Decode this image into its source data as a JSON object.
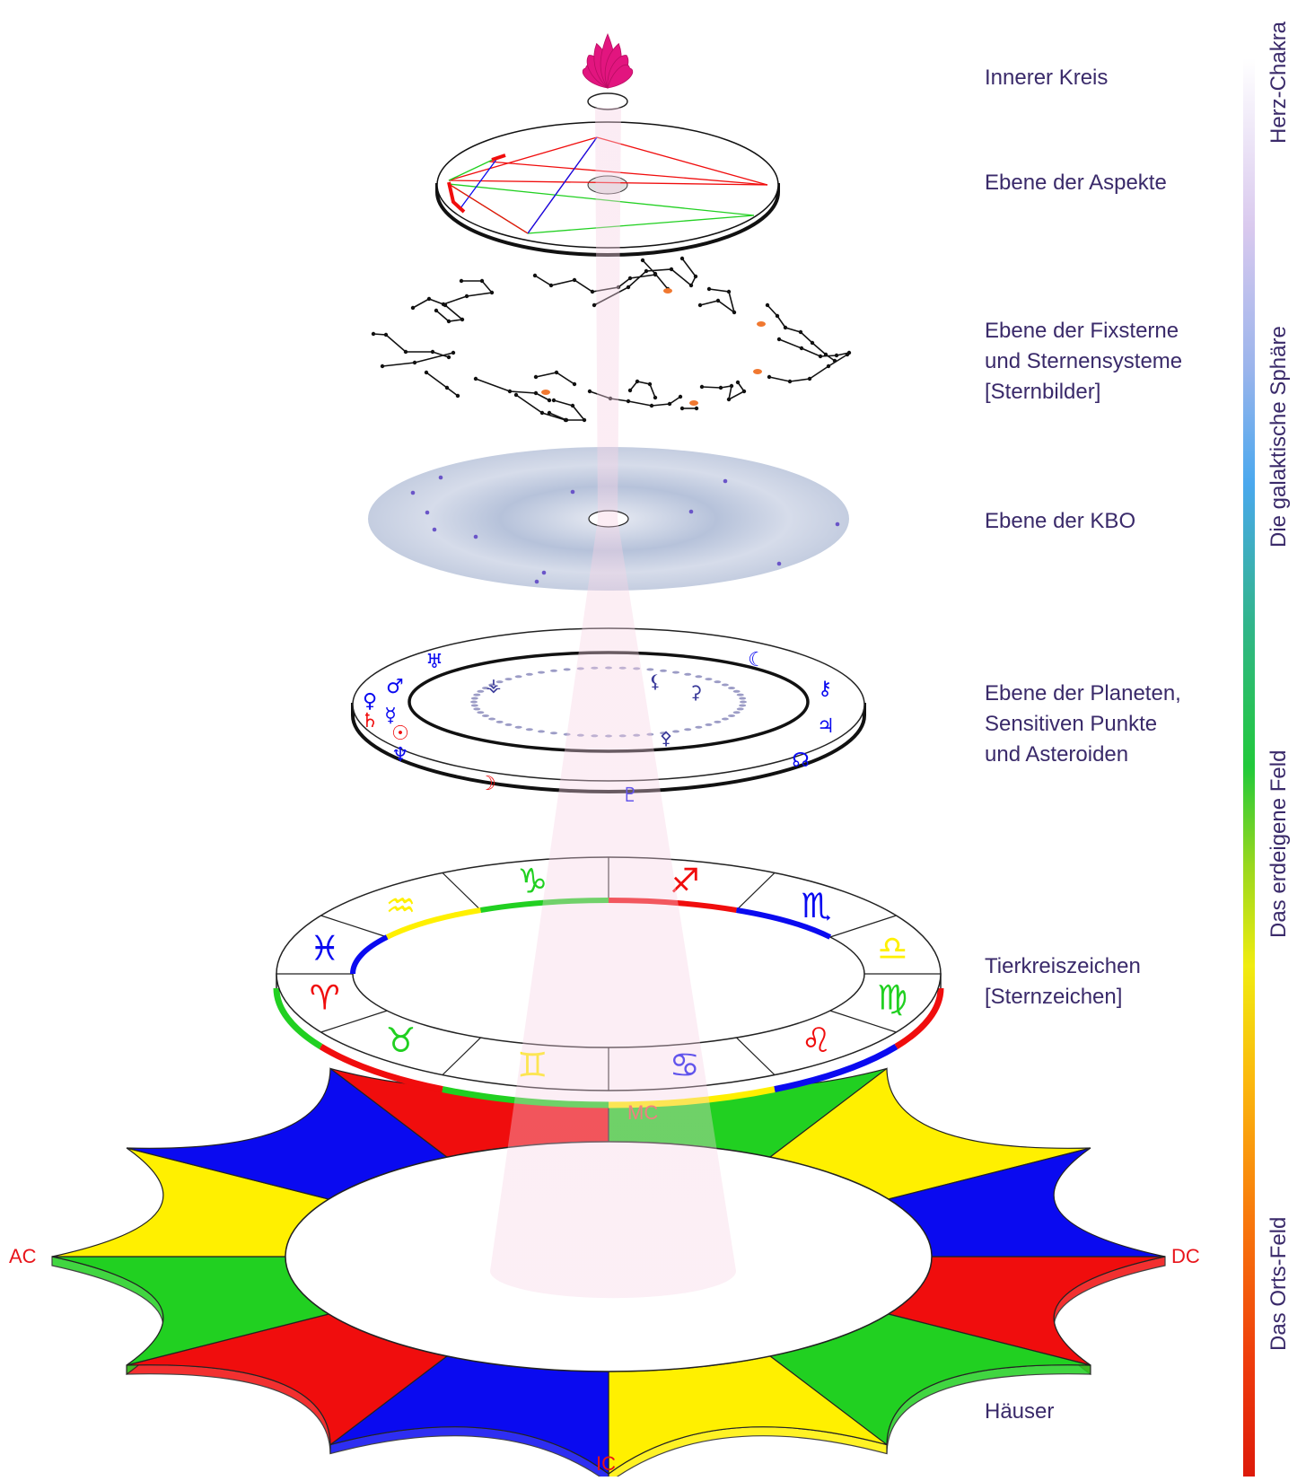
{
  "layers": [
    {
      "id": "inner-circle",
      "lines": [
        "Innerer Kreis"
      ]
    },
    {
      "id": "aspects",
      "lines": [
        "Ebene der Aspekte"
      ]
    },
    {
      "id": "fixed-stars",
      "lines": [
        "Ebene der Fixsterne",
        "und Sternensysteme",
        "[Sternbilder]"
      ]
    },
    {
      "id": "kbo",
      "lines": [
        "Ebene der KBO"
      ]
    },
    {
      "id": "planets",
      "lines": [
        "Ebene der Planeten,",
        "Sensitiven Punkte",
        "und Asteroiden"
      ]
    },
    {
      "id": "zodiac",
      "lines": [
        "Tierkreiszeichen",
        "[Sternzeichen]"
      ]
    },
    {
      "id": "houses",
      "lines": [
        "Häuser"
      ]
    }
  ],
  "spectrum_labels": [
    "Herz-Chakra",
    "Die galaktische Sphäre",
    "Das erdeigene Feld",
    "Das Orts-Feld"
  ],
  "cardinal_points": {
    "mc": "MC",
    "ic": "IC",
    "ac": "AC",
    "dc": "DC"
  },
  "colors": {
    "text": "#3a2a6a",
    "cardinal": "#e8141a",
    "mc": "#f08080",
    "red": "#f00d0d",
    "green": "#21d021",
    "yellow": "#fff000",
    "blue": "#0a0af0",
    "lotus": "#e2157f",
    "beam": "#f6d2e4"
  },
  "icons": {
    "lotus": "lotus-icon",
    "planet_glyphs": [
      "uranus-glyph",
      "mars-glyph",
      "venus-glyph",
      "mercury-glyph",
      "saturn-glyph",
      "sun-glyph",
      "neptune-glyph",
      "moon-glyph",
      "pluto-glyph",
      "jupiter-glyph",
      "chiron-glyph",
      "node-glyph",
      "lilith-glyph",
      "ceres-glyph",
      "juno-glyph"
    ],
    "zodiac_glyphs": [
      "capricorn",
      "sagittarius",
      "scorpio",
      "libra",
      "virgo",
      "leo",
      "cancer",
      "gemini",
      "taurus",
      "aries",
      "pisces",
      "aquarius"
    ]
  }
}
